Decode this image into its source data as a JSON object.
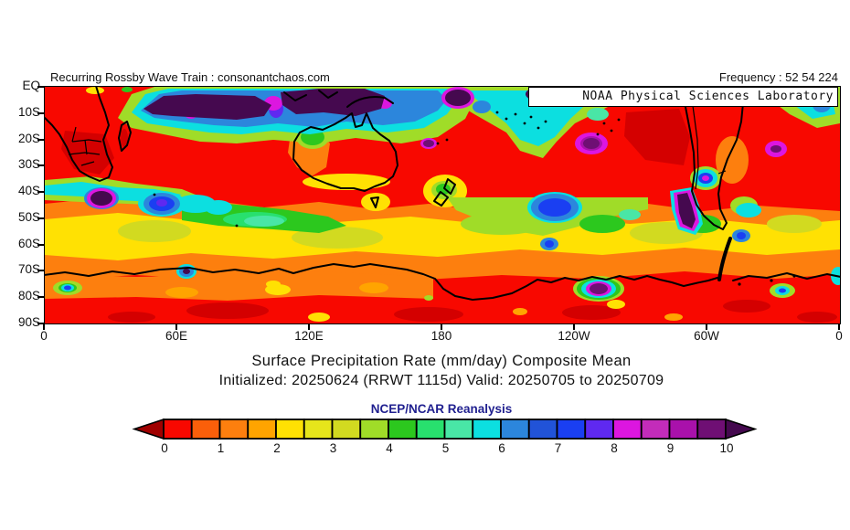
{
  "header": {
    "credit": "Recurring Rossby Wave Train : consonantchaos.com",
    "frequency": "Frequency : 52 54 224"
  },
  "map": {
    "overlay_label": "NOAA Physical Sciences Laboratory",
    "lat_ticks": [
      "EQ",
      "10S",
      "20S",
      "30S",
      "40S",
      "50S",
      "60S",
      "70S",
      "80S",
      "90S"
    ],
    "lon_ticks": [
      "0",
      "60E",
      "120E",
      "180",
      "120W",
      "60W",
      "0"
    ]
  },
  "caption": {
    "title": "Surface Precipitation Rate (mm/day) Composite Mean",
    "subtitle": "Initialized: 20250624 (RRWT 1115d) Valid: 20250705 to 20250709",
    "source": "NCEP/NCAR Reanalysis",
    "source_color": "#1f1f8f"
  },
  "colorbar": {
    "tick_labels": [
      "0",
      "1",
      "2",
      "3",
      "4",
      "5",
      "6",
      "7",
      "8",
      "9",
      "10"
    ],
    "cell_colors": [
      "#f80800",
      "#fa5f0a",
      "#fd7f0e",
      "#ffa400",
      "#ffe103",
      "#e6e51b",
      "#d2da20",
      "#a0dc28",
      "#2cc81e",
      "#28e06e",
      "#49e6a6",
      "#0cdfe0",
      "#2c86dc",
      "#2153d8",
      "#1a3ff2",
      "#5f29f0",
      "#dc16e0",
      "#c32cba",
      "#a911ab",
      "#6f0f74"
    ],
    "arrow_left_color": "#a00000",
    "arrow_right_color": "#45094f"
  },
  "chart_data": {
    "type": "heatmap",
    "title": "Surface Precipitation Rate (mm/day) Composite Mean",
    "subtitle": "Initialized: 20250624 (RRWT 1115d) Valid: 20250705 to 20250709",
    "source": "NCEP/NCAR Reanalysis",
    "provider": "NOAA Physical Sciences Laboratory",
    "annotation_top_left": "Recurring Rossby Wave Train : consonantchaos.com",
    "frequency": "Frequency : 52 54 224",
    "units": "mm/day",
    "projection": {
      "lat_ticks": [
        "EQ",
        "10S",
        "20S",
        "30S",
        "40S",
        "50S",
        "60S",
        "70S",
        "80S",
        "90S"
      ],
      "lon_ticks": [
        "0",
        "60E",
        "120E",
        "180",
        "120W",
        "60W",
        "0"
      ],
      "lat_range_deg": [
        0,
        -90
      ],
      "lon_range_deg": [
        0,
        360
      ],
      "grid": false
    },
    "colorbar": {
      "min": 0,
      "max": 10,
      "tick_labels": [
        "0",
        "1",
        "2",
        "3",
        "4",
        "5",
        "6",
        "7",
        "8",
        "9",
        "10"
      ],
      "levels": [
        0,
        0.5,
        1,
        1.5,
        2,
        2.5,
        3,
        3.5,
        4,
        4.5,
        5,
        5.5,
        6,
        6.5,
        7,
        7.5,
        8,
        8.5,
        9,
        9.5
      ],
      "colors": [
        "#f80800",
        "#fa5f0a",
        "#fd7f0e",
        "#ffa400",
        "#ffe103",
        "#e6e51b",
        "#d2da20",
        "#a0dc28",
        "#2cc81e",
        "#28e06e",
        "#49e6a6",
        "#0cdfe0",
        "#2c86dc",
        "#2153d8",
        "#1a3ff2",
        "#5f29f0",
        "#dc16e0",
        "#c32cba",
        "#a911ab",
        "#6f0f74"
      ],
      "orientation": "horizontal",
      "arrow_ends": true
    },
    "features": [
      "Dark purple band (8-10+ mm/day) along equator over Indian Ocean and Indonesia, ringed by blue, cyan and green",
      "Purple and magenta cells over west Pacific warm pool with green/cyan SPCZ band trending southeast near 170E-170W",
      "Broad red (0-0.5 mm/day) subtropical belt 10S-40S across all ocean basins, Africa, Australia and South America",
      "Yellow-green-cyan storm-track band 45-60S circling hemisphere with blue cells near 50S in Indian and Pacific sectors",
      "Dark purple maximum hugging southern Chile coast near 40-55S",
      "Red/dark-red Antarctic interior south of 70S with scattered orange-yellow patches and a cyan-purple pocket near the Ross Sea"
    ]
  }
}
